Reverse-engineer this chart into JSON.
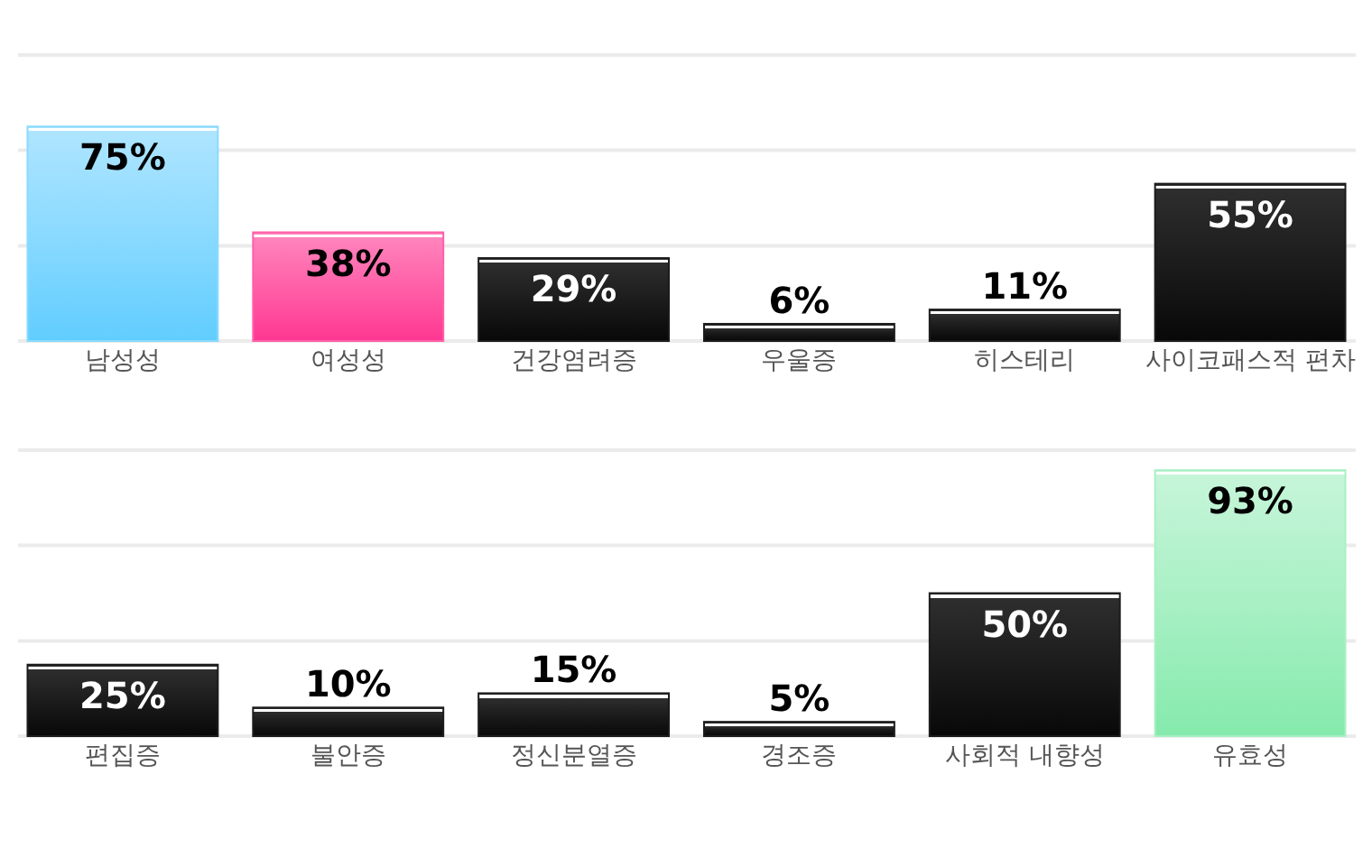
{
  "chart_data": [
    {
      "type": "bar",
      "categories": [
        "남성성",
        "여성성",
        "건강염려증",
        "우울증",
        "히스테리",
        "사이코패스적 편차"
      ],
      "values": [
        75,
        38,
        29,
        6,
        11,
        55
      ],
      "value_labels": [
        "75%",
        "38%",
        "29%",
        "6%",
        "11%",
        "55%"
      ],
      "colors": [
        "#8adaff",
        "#ff60a8",
        "#1c1c1c",
        "#1c1c1c",
        "#1c1c1c",
        "#1c1c1c"
      ],
      "ylim": [
        0,
        100
      ],
      "yticks": [
        {
          "value": 0,
          "label": null
        },
        {
          "value": 33.3,
          "label": null
        },
        {
          "value": 66.7,
          "label": null
        },
        {
          "value": 100,
          "label": null
        }
      ],
      "grid": "y",
      "tick_labels": "x"
    },
    {
      "type": "bar",
      "categories": [
        "편집증",
        "불안증",
        "정신분열증",
        "경조증",
        "사회적 내향성",
        "유효성"
      ],
      "values": [
        25,
        10,
        15,
        5,
        50,
        93
      ],
      "value_labels": [
        "25%",
        "10%",
        "15%",
        "5%",
        "50%",
        "93%"
      ],
      "colors": [
        "#1c1c1c",
        "#1c1c1c",
        "#1c1c1c",
        "#1c1c1c",
        "#1c1c1c",
        "#a8f0c4"
      ],
      "ylim": [
        0,
        100
      ],
      "yticks": [
        {
          "value": 0,
          "label": null
        },
        {
          "value": 33.3,
          "label": null
        },
        {
          "value": 66.7,
          "label": null
        },
        {
          "value": 100,
          "label": null
        }
      ],
      "grid": "y",
      "tick_labels": "x"
    }
  ]
}
